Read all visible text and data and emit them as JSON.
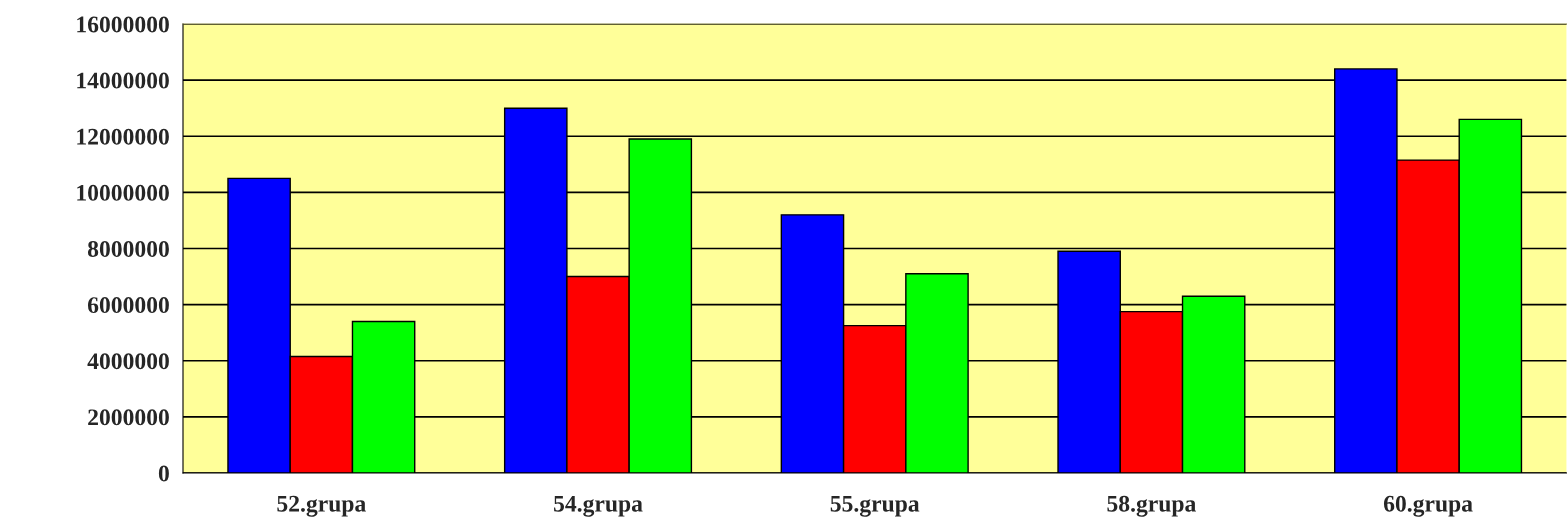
{
  "chart_data": {
    "type": "bar",
    "categories": [
      "52.grupa",
      "54.grupa",
      "55.grupa",
      "58.grupa",
      "60.grupa"
    ],
    "series": [
      {
        "color": "#0000ff",
        "values": [
          10500000,
          13000000,
          9200000,
          7900000,
          14400000
        ]
      },
      {
        "color": "#ff0000",
        "values": [
          4150000,
          7000000,
          5250000,
          5750000,
          11150000
        ]
      },
      {
        "color": "#00ff00",
        "values": [
          5400000,
          11900000,
          7100000,
          6300000,
          12600000
        ]
      }
    ],
    "ylim": [
      0,
      16000000
    ],
    "yticks": [
      0,
      2000000,
      4000000,
      6000000,
      8000000,
      10000000,
      12000000,
      14000000,
      16000000
    ],
    "grid": "y",
    "legend": false
  }
}
